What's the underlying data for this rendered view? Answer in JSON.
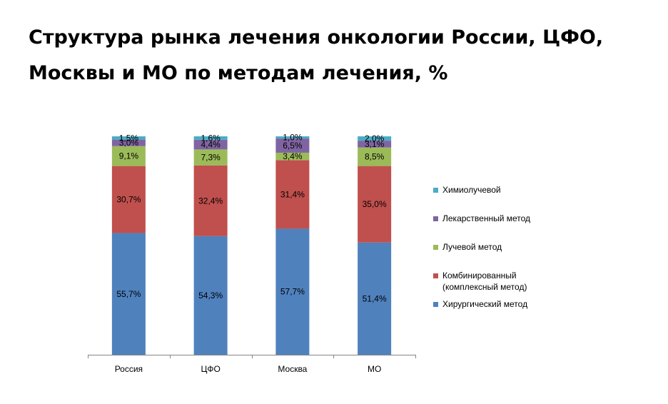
{
  "title_line1": "Структура рынка лечения онкологии России, ЦФО,",
  "title_line2": "Москвы и МО по методам лечения, %",
  "chart_data": {
    "type": "bar",
    "stacked": true,
    "categories": [
      "Россия",
      "ЦФО",
      "Москва",
      "МО"
    ],
    "series": [
      {
        "name": "Хирургический метод",
        "color": "#4F81BD",
        "values": [
          55.7,
          54.3,
          57.7,
          51.4
        ],
        "labels": [
          "55,7%",
          "54,3%",
          "57,7%",
          "51,4%"
        ]
      },
      {
        "name": "Комбинированный\n(комплексный метод)",
        "color": "#C0504D",
        "values": [
          30.7,
          32.4,
          31.4,
          35.0
        ],
        "labels": [
          "30,7%",
          "32,4%",
          "31,4%",
          "35,0%"
        ]
      },
      {
        "name": "Лучевой метод",
        "color": "#9BBB59",
        "values": [
          9.1,
          7.3,
          3.4,
          8.5
        ],
        "labels": [
          "9,1%",
          "7,3%",
          "3,4%",
          "8,5%"
        ]
      },
      {
        "name": "Лекарственный метод",
        "color": "#8064A2",
        "values": [
          3.0,
          4.4,
          6.5,
          3.1
        ],
        "labels": [
          "3,0%",
          "4,4%",
          "6,5%",
          "3,1%"
        ]
      },
      {
        "name": "Химиолучевой",
        "color": "#4BACC6",
        "values": [
          1.5,
          1.6,
          1.0,
          2.0
        ],
        "labels": [
          "1,5%",
          "1,6%",
          "1,0%",
          "2,0%"
        ]
      }
    ],
    "legend_position": "right",
    "ylim": [
      0,
      100
    ],
    "grid": false
  }
}
